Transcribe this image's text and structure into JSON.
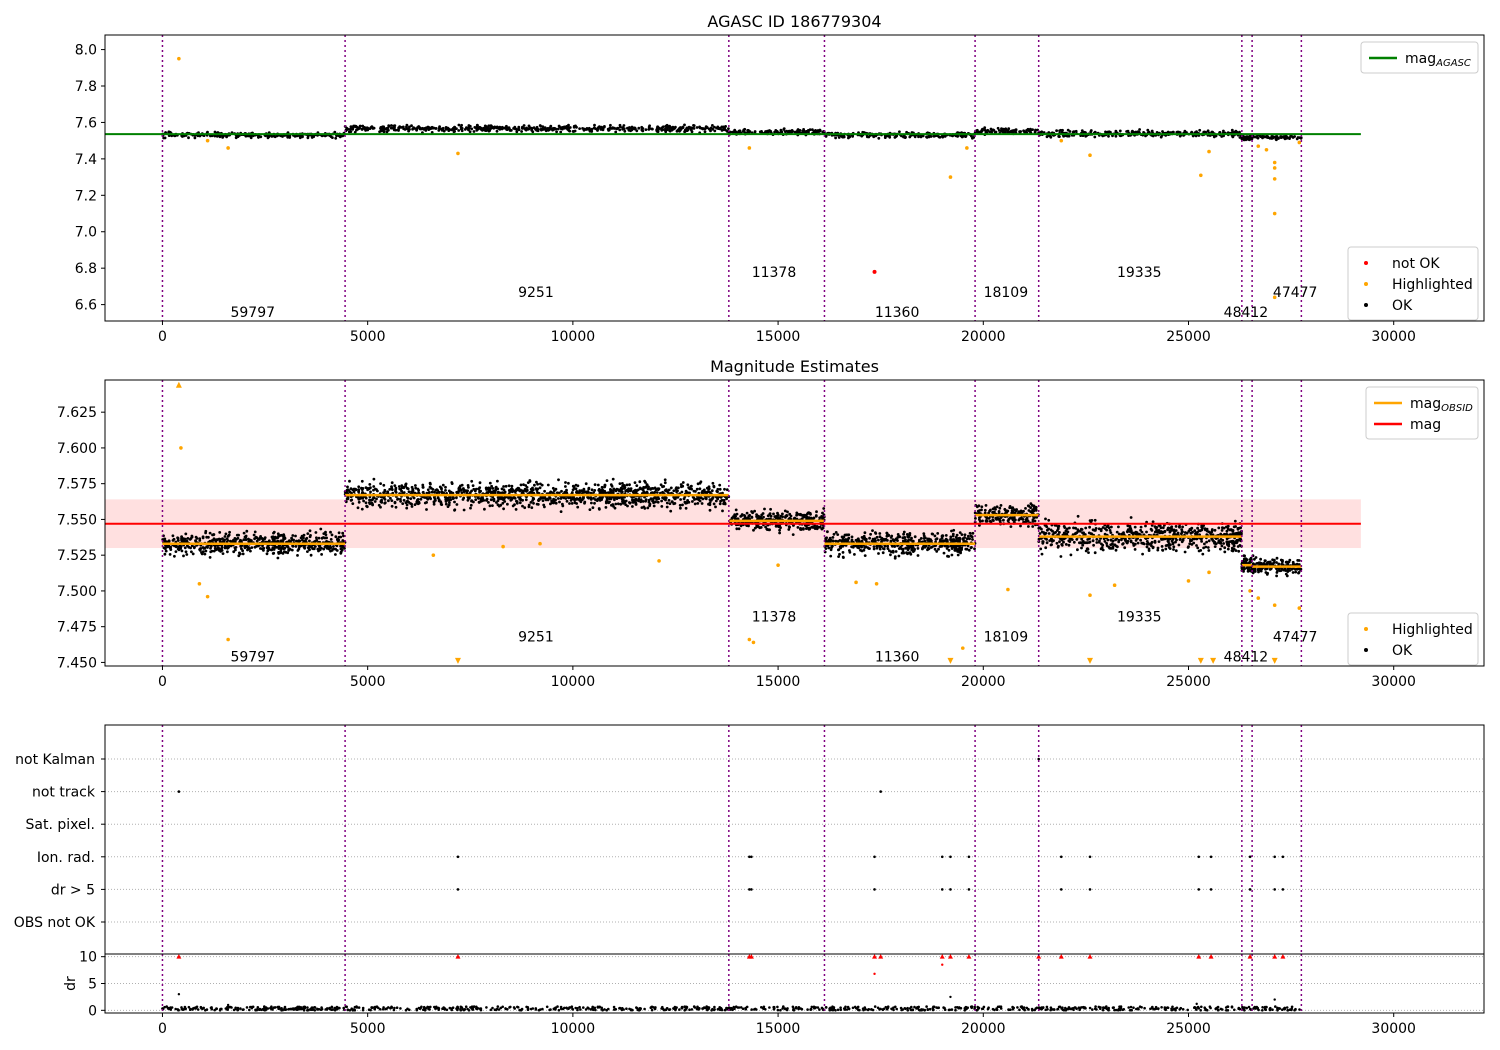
{
  "chart_data": [
    {
      "type": "scatter",
      "title": "AGASC ID 186779304",
      "xlim": [
        -1400,
        32200
      ],
      "ylim": [
        6.51,
        8.08
      ],
      "yticks": [
        6.6,
        6.8,
        7.0,
        7.2,
        7.4,
        7.6,
        7.8,
        8.0
      ],
      "xticks": [
        0,
        5000,
        10000,
        15000,
        20000,
        25000,
        30000
      ],
      "legend_top": [
        {
          "label": "mag_AGASC_label",
          "text": "mag",
          "sub": "AGASC",
          "color": "#008000"
        }
      ],
      "legend_bottom": [
        {
          "text": "not OK",
          "color": "#ff0000"
        },
        {
          "text": "Highlighted",
          "color": "#ffa500"
        },
        {
          "text": "OK",
          "color": "#000000"
        }
      ],
      "hline": {
        "value": 7.536,
        "color": "#008000",
        "x_from": -1400,
        "x_to": 29200
      },
      "segments": [
        {
          "x0": 0,
          "x1": 4450,
          "mean": 7.531,
          "spread": 0.01
        },
        {
          "x0": 4450,
          "x1": 13800,
          "mean": 7.566,
          "spread": 0.012
        },
        {
          "x0": 13800,
          "x1": 16130,
          "mean": 7.548,
          "spread": 0.01
        },
        {
          "x0": 16130,
          "x1": 19800,
          "mean": 7.531,
          "spread": 0.01
        },
        {
          "x0": 19800,
          "x1": 21350,
          "mean": 7.553,
          "spread": 0.01
        },
        {
          "x0": 21350,
          "x1": 26300,
          "mean": 7.539,
          "spread": 0.012
        },
        {
          "x0": 26300,
          "x1": 26550,
          "mean": 7.516,
          "spread": 0.008
        },
        {
          "x0": 26550,
          "x1": 27750,
          "mean": 7.518,
          "spread": 0.008
        }
      ],
      "vlines": [
        0,
        4450,
        13800,
        16130,
        19800,
        21350,
        26300,
        26550,
        27750
      ],
      "obsids": [
        {
          "text": "59797",
          "x": 2200,
          "y": 6.56
        },
        {
          "text": "9251",
          "x": 9100,
          "y": 6.67
        },
        {
          "text": "11378",
          "x": 14900,
          "y": 6.78
        },
        {
          "text": "11360",
          "x": 17900,
          "y": 6.56
        },
        {
          "text": "18109",
          "x": 20550,
          "y": 6.67
        },
        {
          "text": "19335",
          "x": 23800,
          "y": 6.78
        },
        {
          "text": "48412",
          "x": 26400,
          "y": 6.56
        },
        {
          "text": "47477",
          "x": 27600,
          "y": 6.67
        }
      ],
      "highlighted": [
        [
          400,
          7.95
        ],
        [
          1100,
          7.5
        ],
        [
          1600,
          7.46
        ],
        [
          7200,
          7.43
        ],
        [
          14300,
          7.46
        ],
        [
          19200,
          7.3
        ],
        [
          19600,
          7.46
        ],
        [
          21900,
          7.5
        ],
        [
          22600,
          7.42
        ],
        [
          25300,
          7.31
        ],
        [
          25500,
          7.44
        ],
        [
          26700,
          7.47
        ],
        [
          26900,
          7.45
        ],
        [
          27100,
          7.38
        ],
        [
          27100,
          7.35
        ],
        [
          27100,
          7.29
        ],
        [
          27100,
          7.1
        ],
        [
          27100,
          6.64
        ],
        [
          27700,
          7.49
        ]
      ],
      "not_ok": [
        [
          17350,
          6.78
        ]
      ]
    },
    {
      "type": "scatter",
      "title": "Magnitude Estimates",
      "xlim": [
        -1400,
        32200
      ],
      "ylim": [
        7.4475,
        7.6475
      ],
      "yticks": [
        7.45,
        7.475,
        7.5,
        7.525,
        7.55,
        7.575,
        7.6,
        7.625
      ],
      "ytick_labels": [
        "7.450",
        "7.475",
        "7.500",
        "7.525",
        "7.550",
        "7.575",
        "7.600",
        "7.625"
      ],
      "xticks": [
        0,
        5000,
        10000,
        15000,
        20000,
        25000,
        30000
      ],
      "legend_top": [
        {
          "text": "mag",
          "sub": "OBSID",
          "color": "#ffa500"
        },
        {
          "text": "mag",
          "sub": "",
          "color": "#ff0000"
        }
      ],
      "legend_bottom": [
        {
          "text": "Highlighted",
          "color": "#ffa500"
        },
        {
          "text": "OK",
          "color": "#000000"
        }
      ],
      "mag": {
        "value": 7.547,
        "band": [
          7.53,
          7.564
        ],
        "color": "#ff0000",
        "x_from": -1400,
        "x_to": 29200
      },
      "segments": [
        {
          "x0": 0,
          "x1": 4450,
          "mean": 7.533,
          "spread": 0.0055
        },
        {
          "x0": 4450,
          "x1": 13800,
          "mean": 7.567,
          "spread": 0.006
        },
        {
          "x0": 13800,
          "x1": 16130,
          "mean": 7.549,
          "spread": 0.005
        },
        {
          "x0": 16130,
          "x1": 19800,
          "mean": 7.533,
          "spread": 0.0055
        },
        {
          "x0": 19800,
          "x1": 21350,
          "mean": 7.553,
          "spread": 0.005
        },
        {
          "x0": 21350,
          "x1": 26300,
          "mean": 7.538,
          "spread": 0.007
        },
        {
          "x0": 26300,
          "x1": 26550,
          "mean": 7.518,
          "spread": 0.004
        },
        {
          "x0": 26550,
          "x1": 27750,
          "mean": 7.517,
          "spread": 0.004
        }
      ],
      "vlines": [
        0,
        4450,
        13800,
        16130,
        19800,
        21350,
        26300,
        26550,
        27750
      ],
      "obsids": [
        {
          "text": "59797",
          "x": 2200,
          "y": 7.454
        },
        {
          "text": "9251",
          "x": 9100,
          "y": 7.468
        },
        {
          "text": "11378",
          "x": 14900,
          "y": 7.482
        },
        {
          "text": "11360",
          "x": 17900,
          "y": 7.454
        },
        {
          "text": "18109",
          "x": 20550,
          "y": 7.468
        },
        {
          "text": "19335",
          "x": 23800,
          "y": 7.482
        },
        {
          "text": "48412",
          "x": 26400,
          "y": 7.454
        },
        {
          "text": "47477",
          "x": 27600,
          "y": 7.468
        }
      ],
      "highlighted": [
        [
          450,
          7.6
        ],
        [
          900,
          7.505
        ],
        [
          1100,
          7.496
        ],
        [
          1600,
          7.466
        ],
        [
          6600,
          7.525
        ],
        [
          8300,
          7.531
        ],
        [
          9200,
          7.533
        ],
        [
          12100,
          7.521
        ],
        [
          14300,
          7.466
        ],
        [
          14400,
          7.464
        ],
        [
          15000,
          7.518
        ],
        [
          16900,
          7.506
        ],
        [
          17400,
          7.505
        ],
        [
          19500,
          7.46
        ],
        [
          20600,
          7.501
        ],
        [
          22600,
          7.497
        ],
        [
          23200,
          7.504
        ],
        [
          25000,
          7.507
        ],
        [
          25500,
          7.513
        ],
        [
          26500,
          7.5
        ],
        [
          26700,
          7.495
        ],
        [
          27100,
          7.49
        ],
        [
          27700,
          7.488
        ]
      ],
      "markers_up": [
        [
          400,
          7.647
        ]
      ],
      "markers_down": [
        [
          7200,
          7.449
        ],
        [
          19200,
          7.449
        ],
        [
          22600,
          7.449
        ],
        [
          25300,
          7.449
        ],
        [
          25600,
          7.449
        ],
        [
          27100,
          7.449
        ]
      ]
    },
    {
      "type": "scatter",
      "title": "",
      "xlim": [
        -1400,
        32200
      ],
      "flag_rows": [
        "not Kalman",
        "not track",
        "Sat. pixel.",
        "Ion. rad.",
        "dr > 5",
        "OBS not OK"
      ],
      "flag_points": {
        "not Kalman": [
          21350
        ],
        "not track": [
          400,
          17500
        ],
        "Sat. pixel.": [],
        "Ion. rad.": [
          7200,
          14300,
          14350,
          17350,
          19000,
          19200,
          19650,
          21900,
          22600,
          25250,
          25550,
          26500,
          27100,
          27300
        ],
        "dr > 5": [
          7200,
          14300,
          14350,
          17350,
          19000,
          19200,
          19650,
          21900,
          22600,
          25250,
          25550,
          26500,
          27100,
          27300
        ],
        "OBS not OK": []
      },
      "vlines": [
        0,
        4450,
        13800,
        16130,
        19800,
        21350,
        26300,
        26550,
        27750
      ],
      "dr_ylabel": "dr",
      "dr_ylim": [
        -0.5,
        10.5
      ],
      "dr_yticks": [
        0,
        5,
        10
      ],
      "dr_high": [
        400,
        7200,
        14300,
        14350,
        17350,
        17500,
        19000,
        19200,
        19650,
        21350,
        21900,
        22600,
        25250,
        25550,
        26500,
        27100,
        27300
      ],
      "dr_mid": [
        [
          400,
          3.0
        ],
        [
          17350,
          6.8
        ],
        [
          19000,
          8.5
        ],
        [
          19200,
          2.5
        ],
        [
          27100,
          2.0
        ],
        [
          1600,
          1.0
        ],
        [
          25200,
          1.2
        ]
      ],
      "xticks": [
        0,
        5000,
        10000,
        15000,
        20000,
        25000,
        30000
      ]
    }
  ]
}
